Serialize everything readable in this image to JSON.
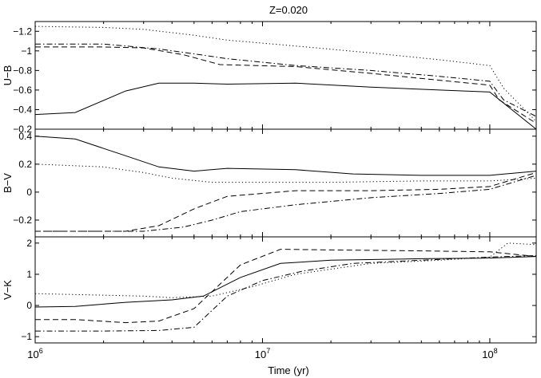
{
  "chart_data": {
    "type": "line",
    "title": "Z=0.020",
    "xlabel": "Time (yr)",
    "xscale": "log",
    "xlim": [
      1000000,
      160000000
    ],
    "xticks": [
      {
        "value": 1000000,
        "base": "10",
        "exp": "6"
      },
      {
        "value": 10000000,
        "base": "10",
        "exp": "7"
      },
      {
        "value": 100000000,
        "base": "10",
        "exp": "8"
      }
    ],
    "grid": false,
    "legend": "none",
    "panels": [
      {
        "ylabel": "U−B",
        "ylim": [
          -1.3,
          -0.2
        ],
        "inverted": true,
        "yticks": [
          -0.2,
          -0.4,
          -0.6,
          -0.8,
          -1,
          -1.2
        ],
        "yticklabels": [
          "−0.2",
          "−0.4",
          "−0.6",
          "−0.8",
          "−1",
          "−1.2"
        ],
        "series": [
          {
            "style": "solid",
            "x": [
              1000000,
              1500000,
              2500000,
              3500000,
              5000000,
              7000000,
              14000000,
              30000000,
              60000000,
              100000000,
              160000000
            ],
            "y": [
              -0.35,
              -0.37,
              -0.59,
              -0.67,
              -0.67,
              -0.66,
              -0.67,
              -0.63,
              -0.6,
              -0.58,
              -0.2
            ]
          },
          {
            "style": "dashed",
            "x": [
              1000000,
              2000000,
              3000000,
              4500000,
              6500000,
              14000000,
              30000000,
              60000000,
              100000000,
              110000000,
              160000000
            ],
            "y": [
              -1.04,
              -1.04,
              -1.03,
              -0.96,
              -0.86,
              -0.84,
              -0.77,
              -0.7,
              -0.65,
              -0.5,
              -0.26
            ]
          },
          {
            "style": "dashdot",
            "x": [
              1000000,
              2000000,
              3500000,
              5000000,
              7000000,
              14000000,
              30000000,
              60000000,
              100000000,
              115000000,
              160000000
            ],
            "y": [
              -1.07,
              -1.07,
              -1.02,
              -0.97,
              -0.92,
              -0.85,
              -0.8,
              -0.74,
              -0.69,
              -0.5,
              -0.33
            ]
          },
          {
            "style": "dotted",
            "x": [
              1000000,
              2000000,
              3000000,
              5000000,
              7000000,
              14000000,
              30000000,
              60000000,
              100000000,
              115000000,
              160000000
            ],
            "y": [
              -1.25,
              -1.24,
              -1.22,
              -1.16,
              -1.11,
              -1.05,
              -0.98,
              -0.91,
              -0.85,
              -0.62,
              -0.28
            ]
          }
        ]
      },
      {
        "ylabel": "B−V",
        "ylim": [
          -0.32,
          0.45
        ],
        "inverted": false,
        "yticks": [
          0.4,
          0.2,
          0,
          -0.2
        ],
        "yticklabels": [
          "0.4",
          "0.2",
          "0",
          "−0.2"
        ],
        "series": [
          {
            "style": "solid",
            "x": [
              1000000,
              1500000,
              2500000,
              3500000,
              5000000,
              7000000,
              14000000,
              25000000,
              50000000,
              100000000,
              160000000
            ],
            "y": [
              0.4,
              0.38,
              0.26,
              0.18,
              0.15,
              0.17,
              0.16,
              0.13,
              0.12,
              0.12,
              0.15
            ]
          },
          {
            "style": "dotted",
            "x": [
              1000000,
              2000000,
              3000000,
              4000000,
              6000000,
              10000000,
              20000000,
              50000000,
              100000000,
              160000000
            ],
            "y": [
              0.2,
              0.18,
              0.14,
              0.1,
              0.07,
              0.07,
              0.07,
              0.08,
              0.08,
              0.1
            ]
          },
          {
            "style": "dashed",
            "x": [
              1000000,
              2500000,
              3500000,
              5000000,
              7000000,
              14000000,
              30000000,
              60000000,
              100000000,
              160000000
            ],
            "y": [
              -0.28,
              -0.28,
              -0.24,
              -0.12,
              -0.03,
              0.01,
              0.01,
              0.02,
              0.04,
              0.14
            ]
          },
          {
            "style": "dashdot",
            "x": [
              1000000,
              3000000,
              4500000,
              6000000,
              8000000,
              14000000,
              30000000,
              60000000,
              100000000,
              160000000
            ],
            "y": [
              -0.28,
              -0.28,
              -0.25,
              -0.2,
              -0.14,
              -0.09,
              -0.04,
              -0.01,
              0.02,
              0.12
            ]
          }
        ]
      },
      {
        "ylabel": "V−K",
        "ylim": [
          -1.2,
          2.2
        ],
        "inverted": false,
        "yticks": [
          2,
          1,
          0,
          -1
        ],
        "yticklabels": [
          "2",
          "1",
          "0",
          "−1"
        ],
        "series": [
          {
            "style": "dotted",
            "x": [
              1000000,
              3000000,
              4000000,
              6000000,
              9000000,
              14000000,
              30000000,
              60000000,
              100000000,
              120000000,
              160000000
            ],
            "y": [
              0.38,
              0.3,
              0.25,
              0.3,
              0.6,
              1.0,
              1.35,
              1.45,
              1.55,
              2.0,
              1.95
            ]
          },
          {
            "style": "solid",
            "x": [
              1000000,
              1500000,
              2500000,
              4000000,
              5500000,
              8000000,
              12000000,
              20000000,
              50000000,
              100000000,
              160000000
            ],
            "y": [
              -0.05,
              -0.03,
              0.1,
              0.18,
              0.3,
              0.9,
              1.35,
              1.45,
              1.5,
              1.52,
              1.57
            ]
          },
          {
            "style": "dashed",
            "x": [
              1000000,
              1500000,
              2500000,
              3500000,
              5000000,
              8000000,
              12000000,
              20000000,
              50000000,
              100000000,
              160000000
            ],
            "y": [
              -0.45,
              -0.45,
              -0.55,
              -0.5,
              -0.1,
              1.3,
              1.8,
              1.78,
              1.75,
              1.72,
              1.57
            ]
          },
          {
            "style": "dashdot",
            "x": [
              1000000,
              2000000,
              3500000,
              5000000,
              7000000,
              10000000,
              15000000,
              25000000,
              50000000,
              100000000,
              160000000
            ],
            "y": [
              -0.82,
              -0.82,
              -0.8,
              -0.7,
              0.3,
              0.8,
              1.1,
              1.35,
              1.45,
              1.55,
              1.6
            ]
          }
        ]
      }
    ]
  }
}
